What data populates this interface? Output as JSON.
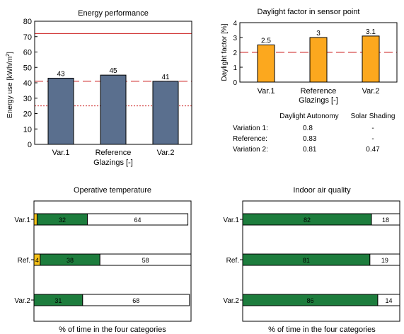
{
  "colors": {
    "energy_bar": "#5a6f8e",
    "daylight_bar": "#fca81e",
    "green": "#1d7d3d",
    "yellow": "#f6c21a",
    "red": "#cc1f1f",
    "axis": "#000000"
  },
  "chart_data": [
    {
      "id": "energy",
      "type": "bar",
      "title": "Energy performance",
      "ylabel": "Energy use [kWh/m2]",
      "ylabel_main": "Energy use [kWh/m",
      "ylabel_sup": "2",
      "ylabel_end": "]",
      "xlabel": "Glazings [-]",
      "categories": [
        "Var.1",
        "Reference",
        "Var.2"
      ],
      "values": [
        43,
        45,
        41
      ],
      "value_labels": [
        "43",
        "45",
        "41"
      ],
      "ylim": [
        0,
        80
      ],
      "yticks": [
        0,
        10,
        20,
        30,
        40,
        50,
        60,
        70,
        80
      ],
      "reference_lines": [
        {
          "value": 72,
          "style": "solid"
        },
        {
          "value": 41,
          "style": "dashed"
        },
        {
          "value": 25,
          "style": "dotted"
        }
      ]
    },
    {
      "id": "daylight",
      "type": "bar",
      "title": "Daylight factor in sensor point",
      "ylabel": "Daylight factor [%]",
      "xlabel": "Glazings [-]",
      "categories": [
        "Var.1",
        "Reference",
        "Var.2"
      ],
      "values": [
        2.5,
        3,
        3.1
      ],
      "value_labels": [
        "2.5",
        "3",
        "3.1"
      ],
      "ylim": [
        0,
        4
      ],
      "yticks": [
        0,
        1,
        2,
        3,
        4
      ],
      "reference_lines": [
        {
          "value": 2,
          "style": "dashed"
        }
      ]
    },
    {
      "id": "operative",
      "type": "bar",
      "stacked": true,
      "orientation": "horizontal",
      "title": "Operative temperature",
      "xlabel": "% of time in the four categories",
      "categories": [
        "Var.1",
        "Ref.",
        "Var.2"
      ],
      "series": [
        {
          "color": "yellow",
          "values": [
            2,
            4,
            0
          ],
          "labels": [
            "",
            "4",
            ""
          ]
        },
        {
          "color": "green",
          "values": [
            32,
            38,
            31
          ],
          "labels": [
            "32",
            "38",
            "31"
          ]
        },
        {
          "color": "white",
          "values": [
            64,
            58,
            68
          ],
          "labels": [
            "64",
            "58",
            "68"
          ]
        }
      ]
    },
    {
      "id": "iaq",
      "type": "bar",
      "stacked": true,
      "orientation": "horizontal",
      "title": "Indoor air quality",
      "xlabel": "% of time in the four categories",
      "categories": [
        "Var.1",
        "Ref.",
        "Var.2"
      ],
      "series": [
        {
          "color": "green",
          "values": [
            82,
            81,
            86
          ],
          "labels": [
            "82",
            "81",
            "86"
          ]
        },
        {
          "color": "white",
          "values": [
            18,
            19,
            14
          ],
          "labels": [
            "18",
            "19",
            "14"
          ]
        }
      ]
    }
  ],
  "daylight_table": {
    "headers": [
      "Daylight Autonomy",
      "Solar Shading"
    ],
    "rows": [
      {
        "label": "Variation 1:",
        "autonomy": "0.8",
        "shading": "-"
      },
      {
        "label": "Reference:",
        "autonomy": "0.83",
        "shading": "-"
      },
      {
        "label": "Variation 2:",
        "autonomy": "0.81",
        "shading": "0.47"
      }
    ]
  }
}
